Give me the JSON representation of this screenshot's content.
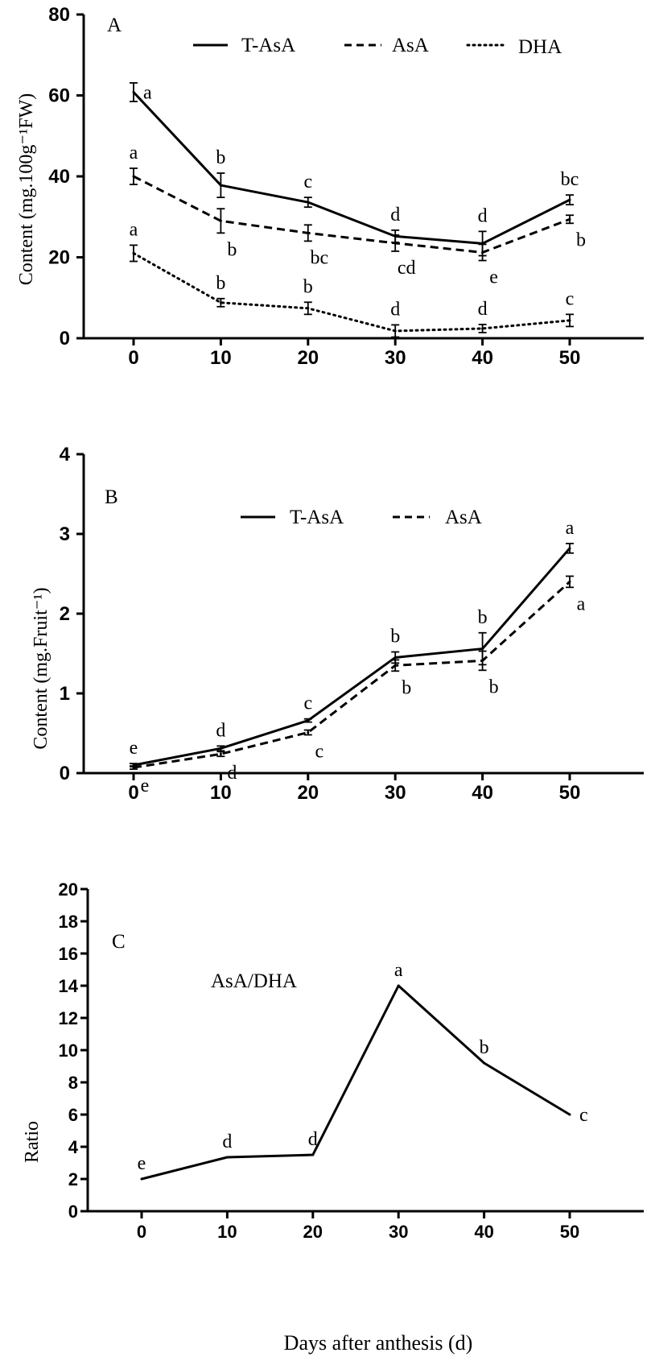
{
  "chart_data": [
    {
      "type": "line",
      "panel_label": "A",
      "title": "",
      "xlabel": "",
      "ylabel": "Content (mg.100g⁻¹FW)",
      "xlim": [
        -5,
        55
      ],
      "ylim": [
        0,
        80
      ],
      "x_ticks": [
        "0",
        "10",
        "20",
        "30",
        "40",
        "50"
      ],
      "y_ticks": [
        "0",
        "20",
        "40",
        "60",
        "80"
      ],
      "x": [
        0,
        10,
        20,
        30,
        40,
        50
      ],
      "legend": {
        "placement": "top",
        "entries": [
          "T-AsA",
          "AsA",
          "DHA"
        ]
      },
      "series": [
        {
          "name": "T-AsA",
          "style": "solid",
          "values": [
            60.8,
            37.8,
            33.6,
            25.2,
            23.4,
            34.2
          ],
          "errors": [
            2.3,
            3.0,
            1.2,
            1.5,
            3.0,
            1.2
          ],
          "letters": [
            "a",
            "b",
            "c",
            "d",
            "d",
            "bc"
          ],
          "letter_pos": [
            "right",
            "above",
            "above",
            "above",
            "above",
            "above"
          ]
        },
        {
          "name": "AsA",
          "style": "dashed",
          "values": [
            40.0,
            29.0,
            26.0,
            23.5,
            21.2,
            29.4
          ],
          "errors": [
            2.0,
            3.0,
            2.0,
            2.0,
            2.0,
            1.0
          ],
          "letters": [
            "a",
            "b",
            "bc",
            "cd",
            "e",
            "b"
          ],
          "letter_pos": [
            "above",
            "below",
            "below",
            "below",
            "below",
            "below"
          ]
        },
        {
          "name": "DHA",
          "style": "dotted",
          "values": [
            21.0,
            8.8,
            7.4,
            1.8,
            2.4,
            4.4
          ],
          "errors": [
            2.0,
            1.0,
            1.5,
            1.5,
            1.0,
            1.5
          ],
          "letters": [
            "a",
            "b",
            "b",
            "d",
            "d",
            "c"
          ],
          "letter_pos": [
            "above",
            "above",
            "above",
            "above",
            "above",
            "above"
          ]
        }
      ]
    },
    {
      "type": "line",
      "panel_label": "B",
      "title": "",
      "xlabel": "",
      "ylabel": "Content (mg.Fruit⁻¹)",
      "xlim": [
        -5,
        55
      ],
      "ylim": [
        0,
        4
      ],
      "x_ticks": [
        "0",
        "10",
        "20",
        "30",
        "40",
        "50"
      ],
      "y_ticks": [
        "0",
        "1",
        "2",
        "3",
        "4"
      ],
      "x": [
        0,
        10,
        20,
        30,
        40,
        50
      ],
      "legend": {
        "placement": "top",
        "entries": [
          "T-AsA",
          "AsA"
        ]
      },
      "series": [
        {
          "name": "T-AsA",
          "style": "solid",
          "values": [
            0.1,
            0.31,
            0.66,
            1.45,
            1.56,
            2.82
          ],
          "errors": [
            0.02,
            0.03,
            0.02,
            0.07,
            0.2,
            0.06
          ],
          "letters": [
            "e",
            "d",
            "c",
            "b",
            "b",
            "a"
          ],
          "letter_pos": [
            "above",
            "above",
            "above",
            "above",
            "above",
            "above"
          ]
        },
        {
          "name": "AsA",
          "style": "dashed",
          "values": [
            0.07,
            0.24,
            0.51,
            1.35,
            1.41,
            2.4
          ],
          "errors": [
            0.02,
            0.03,
            0.03,
            0.07,
            0.12,
            0.07
          ],
          "letters": [
            "e",
            "d",
            "c",
            "b",
            "b",
            "a"
          ],
          "letter_pos": [
            "below",
            "below",
            "below",
            "below",
            "below",
            "below"
          ]
        }
      ]
    },
    {
      "type": "line",
      "panel_label": "C",
      "title": "",
      "xlabel": "Days after anthesis (d)",
      "ylabel": "Ratio",
      "xlim": [
        -5,
        55
      ],
      "ylim": [
        0,
        20
      ],
      "x_ticks": [
        "0",
        "10",
        "20",
        "30",
        "40",
        "50"
      ],
      "y_ticks": [
        "0",
        "2",
        "4",
        "6",
        "8",
        "10",
        "12",
        "14",
        "16",
        "18",
        "20"
      ],
      "x": [
        0,
        10,
        20,
        30,
        40,
        50
      ],
      "annotation": "AsA/DHA",
      "series": [
        {
          "name": "AsA/DHA",
          "style": "solid",
          "values": [
            2.0,
            3.35,
            3.5,
            14.0,
            9.2,
            6.0
          ],
          "letters": [
            "e",
            "d",
            "d",
            "a",
            "b",
            "c"
          ],
          "letter_pos": [
            "above",
            "above",
            "above",
            "above",
            "above",
            "right"
          ]
        }
      ]
    }
  ]
}
